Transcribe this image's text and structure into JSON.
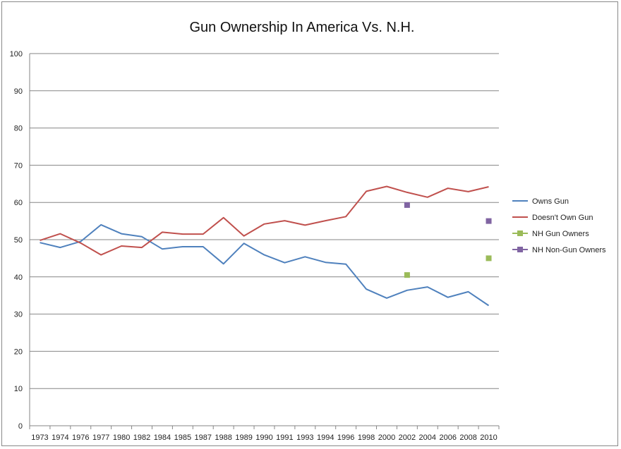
{
  "chart_data": {
    "type": "line",
    "title": "Gun Ownership In America Vs. N.H.",
    "xlabel": "",
    "ylabel": "",
    "ylim": [
      0,
      100
    ],
    "yticks": [
      0,
      10,
      20,
      30,
      40,
      50,
      60,
      70,
      80,
      90,
      100
    ],
    "grid": true,
    "legend": "right",
    "categories": [
      "1973",
      "1974",
      "1976",
      "1977",
      "1980",
      "1982",
      "1984",
      "1985",
      "1987",
      "1988",
      "1989",
      "1990",
      "1991",
      "1993",
      "1994",
      "1996",
      "1998",
      "2000",
      "2002",
      "2004",
      "2006",
      "2008",
      "2010"
    ],
    "series": [
      {
        "name": "Owns Gun",
        "kind": "line",
        "color": "#4f81bd",
        "values": [
          49.2,
          47.9,
          49.5,
          54.0,
          51.6,
          50.8,
          47.5,
          48.1,
          48.1,
          43.5,
          49.0,
          45.9,
          43.8,
          45.4,
          43.9,
          43.4,
          36.7,
          34.3,
          36.4,
          37.3,
          34.5,
          36.0,
          32.3
        ]
      },
      {
        "name": "Doesn't Own Gun",
        "kind": "line",
        "color": "#c0504d",
        "values": [
          49.8,
          51.6,
          49.1,
          45.9,
          48.3,
          47.9,
          52.0,
          51.5,
          51.5,
          55.9,
          51.0,
          54.2,
          55.1,
          53.9,
          55.1,
          56.2,
          63.0,
          64.3,
          62.7,
          61.4,
          63.8,
          62.9,
          64.2
        ]
      },
      {
        "name": "NH Gun Owners",
        "kind": "marker",
        "color": "#9bbb59",
        "points": [
          {
            "x": "2002",
            "y": 40.5
          },
          {
            "x": "2010",
            "y": 45.0
          }
        ]
      },
      {
        "name": "NH Non-Gun Owners",
        "kind": "marker",
        "color": "#8064a2",
        "points": [
          {
            "x": "2002",
            "y": 59.3
          },
          {
            "x": "2010",
            "y": 55.0
          }
        ]
      }
    ]
  }
}
